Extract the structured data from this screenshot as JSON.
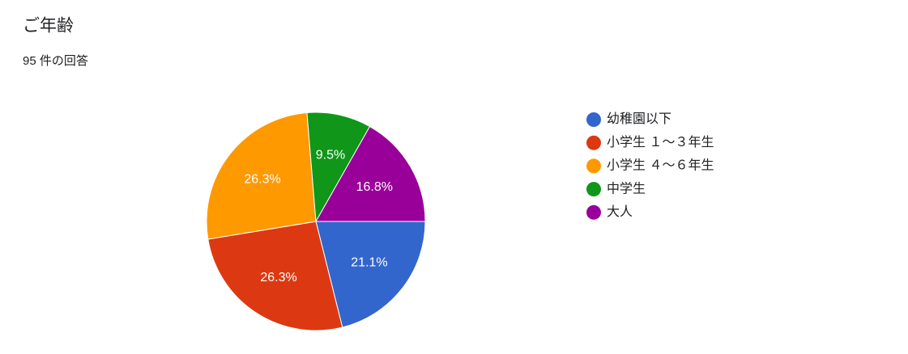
{
  "chart_data": {
    "type": "pie",
    "title": "ご年齢",
    "subtitle": "95 件の回答",
    "categories": [
      "幼稚園以下",
      "小学生 １～３年生",
      "小学生 ４～６年生",
      "中学生",
      "大人"
    ],
    "values": [
      21.1,
      26.3,
      26.3,
      9.5,
      16.8
    ],
    "value_labels": [
      "21.1%",
      "26.3%",
      "26.3%",
      "9.5%",
      "16.8%"
    ],
    "colors": [
      "#3366cc",
      "#dc3912",
      "#ff9900",
      "#109618",
      "#990099"
    ],
    "legend": "right"
  }
}
